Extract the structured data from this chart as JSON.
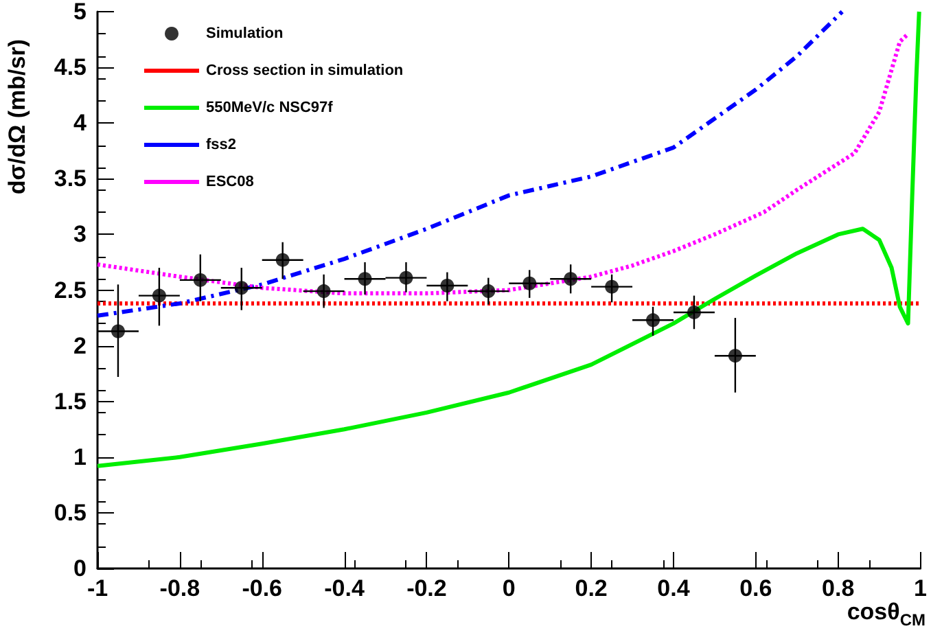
{
  "chart_data": {
    "type": "line",
    "xlabel": "cosθ$_{CM}$",
    "ylabel": "dσ/dΩ (mb/sr)",
    "xlim": [
      -1,
      1
    ],
    "xticks": [
      -1,
      -0.8,
      -0.6,
      -0.4,
      -0.2,
      0,
      0.2,
      0.4,
      0.6,
      0.8,
      1
    ],
    "ylim": [
      0,
      5
    ],
    "yticks": [
      0,
      0.5,
      1,
      1.5,
      2,
      2.5,
      3,
      3.5,
      4,
      4.5,
      5
    ],
    "grid": false,
    "legend": "top left",
    "series": [
      {
        "name": "Simulation",
        "type": "scatter",
        "marker": "circle",
        "color": "#000000",
        "x": [
          -0.95,
          -0.85,
          -0.75,
          -0.65,
          -0.55,
          -0.45,
          -0.35,
          -0.25,
          -0.15,
          -0.05,
          0.05,
          0.15,
          0.25,
          0.35,
          0.45,
          0.55
        ],
        "values": [
          2.13,
          2.45,
          2.59,
          2.52,
          2.77,
          2.49,
          2.6,
          2.61,
          2.54,
          2.49,
          2.56,
          2.6,
          2.53,
          2.23,
          2.3,
          1.91
        ],
        "errors": [
          [
            1.72,
            2.55
          ],
          [
            2.18,
            2.7
          ],
          [
            2.4,
            2.82
          ],
          [
            2.32,
            2.7
          ],
          [
            2.6,
            2.93
          ],
          [
            2.34,
            2.64
          ],
          [
            2.46,
            2.75
          ],
          [
            2.48,
            2.75
          ],
          [
            2.4,
            2.66
          ],
          [
            2.37,
            2.61
          ],
          [
            2.43,
            2.68
          ],
          [
            2.47,
            2.73
          ],
          [
            2.39,
            2.64
          ],
          [
            2.09,
            2.35
          ],
          [
            2.15,
            2.45
          ],
          [
            1.58,
            2.25
          ]
        ],
        "xerrors": [
          0.05,
          0.05,
          0.05,
          0.05,
          0.05,
          0.05,
          0.05,
          0.05,
          0.05,
          0.05,
          0.05,
          0.05,
          0.05,
          0.05,
          0.05,
          0.05
        ]
      },
      {
        "name": "Cross section in simulation",
        "line_style": "dotted",
        "color": "#ff0000",
        "x": [
          -1,
          1
        ],
        "values": [
          2.38,
          2.38
        ]
      },
      {
        "name": "550MeV/c NSC97f",
        "line_style": "solid",
        "color": "#00ee00",
        "x": [
          -1,
          -0.8,
          -0.6,
          -0.4,
          -0.2,
          0,
          0.2,
          0.4,
          0.5,
          0.6,
          0.7,
          0.8,
          0.86,
          0.9,
          0.93,
          0.95,
          0.97,
          0.98,
          0.99,
          0.997
        ],
        "values": [
          0.92,
          1.0,
          1.12,
          1.25,
          1.4,
          1.58,
          1.83,
          2.2,
          2.42,
          2.63,
          2.83,
          3.0,
          3.05,
          2.95,
          2.7,
          2.35,
          2.2,
          3.33,
          4.4,
          5.0
        ]
      },
      {
        "name": "fss2",
        "line_style": "dashed",
        "color": "#0000ff",
        "x": [
          -1,
          -0.8,
          -0.6,
          -0.4,
          -0.2,
          0,
          0.2,
          0.4,
          0.6,
          0.7,
          0.81
        ],
        "values": [
          2.27,
          2.38,
          2.55,
          2.78,
          3.05,
          3.35,
          3.52,
          3.78,
          4.3,
          4.6,
          5.0
        ]
      },
      {
        "name": "ESC08",
        "line_style": "dotted",
        "color": "#ff00ff",
        "x": [
          -1,
          -0.8,
          -0.6,
          -0.4,
          -0.2,
          0,
          0.2,
          0.3,
          0.4,
          0.5,
          0.62,
          0.7,
          0.84,
          0.9,
          0.95,
          0.97
        ],
        "values": [
          2.73,
          2.62,
          2.52,
          2.47,
          2.47,
          2.5,
          2.62,
          2.72,
          2.85,
          3.0,
          3.2,
          3.4,
          3.73,
          4.1,
          4.73,
          4.8
        ]
      }
    ]
  }
}
